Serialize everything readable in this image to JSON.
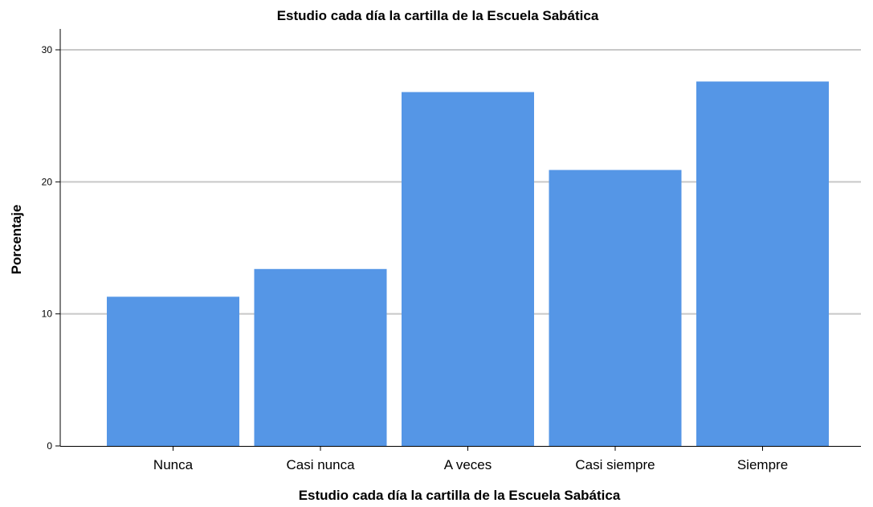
{
  "chart_data": {
    "type": "bar",
    "title": "Estudio cada día la cartilla de la Escuela Sabática",
    "xlabel": "Estudio cada día la cartilla de la Escuela Sabática",
    "ylabel": "Porcentaje",
    "categories": [
      "Nunca",
      "Casi nunca",
      "A veces",
      "Casi siempre",
      "Siempre"
    ],
    "values": [
      11.3,
      13.4,
      26.8,
      20.9,
      27.6
    ],
    "ylim": [
      0,
      32
    ],
    "yticks": [
      0,
      10,
      20,
      30
    ],
    "grid": true,
    "legend": "none",
    "bar_color": "#5596E6",
    "grid_color": "#C8C8C8",
    "axis_color": "#000000"
  }
}
